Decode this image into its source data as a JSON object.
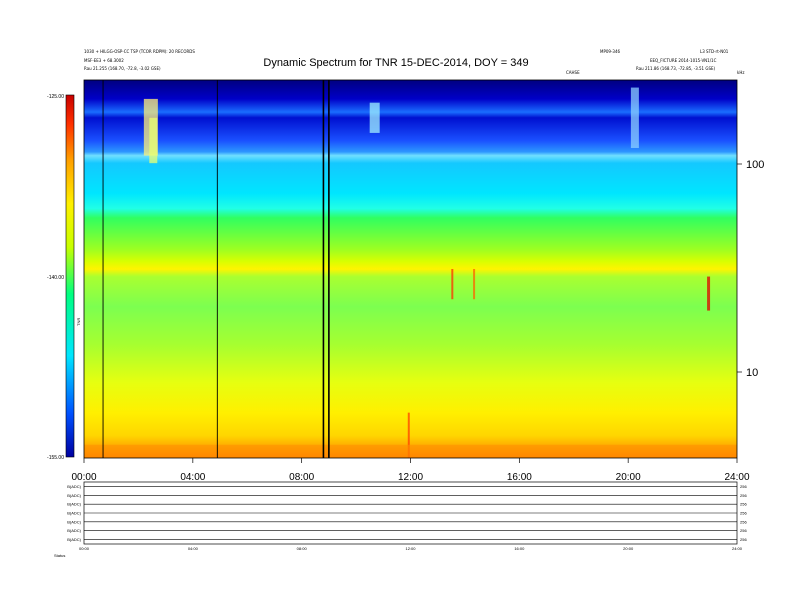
{
  "chart_data": {
    "type": "heatmap",
    "title": "Dynamic Spectrum for TNR 15-DEC-2014, DOY = 349",
    "header": {
      "left": [
        "1030 + HILGG-OSP-CC TSP (TCOR RDPM): 20 RECORDS",
        "MSF-EE3 + 68.3002",
        "Rau 21.255 (168.70, -72.8, -3.02 GSE)"
      ],
      "center": [
        "MP09-346",
        "CAHSE"
      ],
      "right": [
        "L3 STD-rt-N01",
        "EEQ_FICTURE 2014-1015-VN1/1C",
        "Rau 211.86 (168.73, -72.85, -3.51 GSE)"
      ],
      "corner": "kHz"
    },
    "x_ticks": [
      "00:00",
      "04:00",
      "08:00",
      "12:00",
      "16:00",
      "20:00",
      "24:00"
    ],
    "xlim_hours": [
      0,
      24
    ],
    "y_right": {
      "scale": "log",
      "ticks": [
        "100",
        "10"
      ]
    },
    "colorbar": {
      "label": "TNR",
      "ticks": [
        "-125.00",
        "-140.00",
        "-155.00"
      ],
      "range_db": [
        -155,
        -125
      ],
      "colors": [
        "#0000a0",
        "#0050ff",
        "#00e6ff",
        "#00ff80",
        "#c8ff00",
        "#fff000",
        "#ffa000",
        "#ff3000",
        "#c80000"
      ]
    },
    "dark_vertical_lines_hours": [
      0.7,
      4.9,
      8.8,
      9.0
    ],
    "emission_bands": [
      {
        "name": "upper dark band",
        "freq_range_khz": [
          200,
          300
        ],
        "level_db": -152
      },
      {
        "name": "cyan region",
        "freq_range_khz": [
          55,
          130
        ],
        "level_db": -137
      },
      {
        "name": "green-yellow transition",
        "freq_range_khz": [
          28,
          55
        ],
        "level_db": -133
      },
      {
        "name": "yellow floor",
        "freq_range_khz": [
          4,
          28
        ],
        "level_db": -130
      }
    ],
    "lower_panels": {
      "labels": [
        "B(ADC)",
        "B(ADC)",
        "B(ADC)",
        "B(ADC)",
        "B(ADC)",
        "B(ADC)",
        "B(ADC)"
      ],
      "ytop_ticks": [
        "256",
        "256",
        "256",
        "256",
        "256",
        "256",
        "256"
      ],
      "x_ticks": [
        "00:00",
        "04:00",
        "08:00",
        "12:00",
        "16:00",
        "20:00",
        "24:00"
      ],
      "status_label": "Status"
    }
  }
}
